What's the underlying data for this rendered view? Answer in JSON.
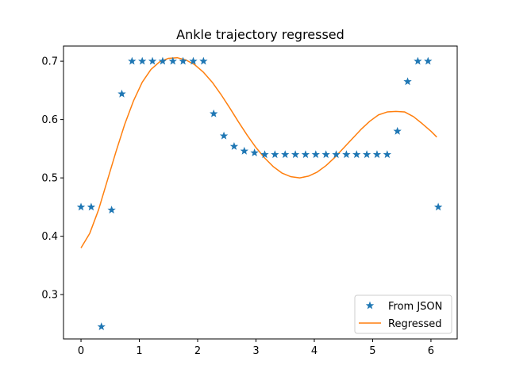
{
  "chart_data": {
    "type": "line",
    "title": "Ankle trajectory regressed",
    "xlabel": "",
    "ylabel": "",
    "xlim": [
      -0.3,
      6.45
    ],
    "ylim": [
      0.224,
      0.726
    ],
    "xticks": [
      0,
      1,
      2,
      3,
      4,
      5,
      6
    ],
    "yticks": [
      0.3,
      0.4,
      0.5,
      0.6,
      0.7
    ],
    "ytick_labels": [
      "0.3",
      "0.4",
      "0.5",
      "0.6",
      "0.7"
    ],
    "grid": false,
    "legend_position": "lower-right",
    "series": [
      {
        "name": "From JSON",
        "kind": "scatter",
        "marker": "star",
        "color": "#1f77b4",
        "points": [
          [
            0.0,
            0.45
          ],
          [
            0.175,
            0.45
          ],
          [
            0.35,
            0.245
          ],
          [
            0.525,
            0.445
          ],
          [
            0.7,
            0.644
          ],
          [
            0.875,
            0.7
          ],
          [
            1.05,
            0.7
          ],
          [
            1.225,
            0.7
          ],
          [
            1.4,
            0.7
          ],
          [
            1.575,
            0.7
          ],
          [
            1.75,
            0.7
          ],
          [
            1.925,
            0.7
          ],
          [
            2.1,
            0.7
          ],
          [
            2.275,
            0.61
          ],
          [
            2.45,
            0.572
          ],
          [
            2.625,
            0.554
          ],
          [
            2.8,
            0.546
          ],
          [
            2.975,
            0.543
          ],
          [
            3.15,
            0.54
          ],
          [
            3.325,
            0.54
          ],
          [
            3.5,
            0.54
          ],
          [
            3.675,
            0.54
          ],
          [
            3.85,
            0.54
          ],
          [
            4.025,
            0.54
          ],
          [
            4.2,
            0.54
          ],
          [
            4.375,
            0.54
          ],
          [
            4.55,
            0.54
          ],
          [
            4.725,
            0.54
          ],
          [
            4.9,
            0.54
          ],
          [
            5.075,
            0.54
          ],
          [
            5.25,
            0.54
          ],
          [
            5.425,
            0.58
          ],
          [
            5.6,
            0.665
          ],
          [
            5.775,
            0.7
          ],
          [
            5.95,
            0.7
          ],
          [
            6.125,
            0.45
          ]
        ]
      },
      {
        "name": "Regressed",
        "kind": "line",
        "color": "#ff7f0e",
        "points": [
          [
            0.0,
            0.38
          ],
          [
            0.15,
            0.405
          ],
          [
            0.3,
            0.445
          ],
          [
            0.45,
            0.495
          ],
          [
            0.6,
            0.545
          ],
          [
            0.75,
            0.592
          ],
          [
            0.9,
            0.632
          ],
          [
            1.05,
            0.664
          ],
          [
            1.2,
            0.686
          ],
          [
            1.35,
            0.699
          ],
          [
            1.5,
            0.705
          ],
          [
            1.65,
            0.706
          ],
          [
            1.8,
            0.702
          ],
          [
            1.95,
            0.694
          ],
          [
            2.1,
            0.681
          ],
          [
            2.25,
            0.664
          ],
          [
            2.4,
            0.643
          ],
          [
            2.55,
            0.62
          ],
          [
            2.7,
            0.596
          ],
          [
            2.85,
            0.573
          ],
          [
            3.0,
            0.552
          ],
          [
            3.15,
            0.534
          ],
          [
            3.3,
            0.519
          ],
          [
            3.45,
            0.508
          ],
          [
            3.6,
            0.502
          ],
          [
            3.75,
            0.5
          ],
          [
            3.9,
            0.503
          ],
          [
            4.05,
            0.51
          ],
          [
            4.2,
            0.521
          ],
          [
            4.35,
            0.535
          ],
          [
            4.5,
            0.551
          ],
          [
            4.65,
            0.567
          ],
          [
            4.8,
            0.583
          ],
          [
            4.95,
            0.597
          ],
          [
            5.1,
            0.608
          ],
          [
            5.25,
            0.613
          ],
          [
            5.4,
            0.614
          ],
          [
            5.55,
            0.613
          ],
          [
            5.7,
            0.605
          ],
          [
            5.85,
            0.593
          ],
          [
            6.0,
            0.58
          ],
          [
            6.1,
            0.57
          ]
        ]
      }
    ]
  }
}
